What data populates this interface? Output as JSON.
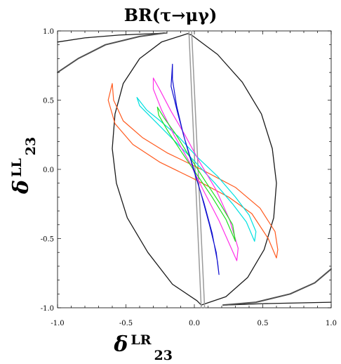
{
  "chart_data": {
    "type": "line",
    "title": "BR(τ→μγ)",
    "xlabel": {
      "symbol": "δ",
      "superscript": "LR",
      "subscript": "23"
    },
    "ylabel": {
      "symbol": "δ",
      "superscript": "LL",
      "subscript": "23"
    },
    "xlim": [
      -1.0,
      1.0
    ],
    "ylim": [
      -1.0,
      1.0
    ],
    "xticks": [
      "-1.0",
      "-0.5",
      "0.0",
      "0.5",
      "1.0"
    ],
    "yticks": [
      "1.0",
      "0.5",
      "0.0",
      "-0.5",
      "-1.0"
    ],
    "grid": false,
    "series": [
      {
        "color": "#1a1a1a",
        "width": 1.3,
        "closed": true,
        "points": [
          [
            -0.05,
            0.98
          ],
          [
            -0.24,
            0.92
          ],
          [
            -0.4,
            0.8
          ],
          [
            -0.52,
            0.62
          ],
          [
            -0.58,
            0.4
          ],
          [
            -0.6,
            0.15
          ],
          [
            -0.57,
            -0.1
          ],
          [
            -0.49,
            -0.35
          ],
          [
            -0.34,
            -0.6
          ],
          [
            -0.16,
            -0.83
          ],
          [
            0.02,
            -0.95
          ],
          [
            0.05,
            -0.98
          ],
          [
            0.23,
            -0.92
          ],
          [
            0.39,
            -0.78
          ],
          [
            0.51,
            -0.58
          ],
          [
            0.58,
            -0.35
          ],
          [
            0.6,
            -0.1
          ],
          [
            0.57,
            0.15
          ],
          [
            0.49,
            0.4
          ],
          [
            0.35,
            0.63
          ],
          [
            0.17,
            0.83
          ],
          [
            -0.02,
            0.97
          ],
          [
            -0.05,
            0.98
          ]
        ]
      },
      {
        "color": "#1a1a1a",
        "width": 1.3,
        "points": [
          [
            -1.0,
            0.92
          ],
          [
            -0.8,
            0.95
          ],
          [
            -0.55,
            0.97
          ],
          [
            -0.3,
            0.98
          ],
          [
            -0.2,
            0.985
          ]
        ]
      },
      {
        "color": "#1a1a1a",
        "width": 1.3,
        "points": [
          [
            0.23,
            -0.98
          ],
          [
            0.5,
            -0.97
          ],
          [
            0.75,
            -0.965
          ],
          [
            1.0,
            -0.96
          ]
        ]
      },
      {
        "color": "#505050",
        "width": 2.0,
        "points": [
          [
            -1.0,
            0.7
          ],
          [
            -0.85,
            0.8
          ],
          [
            -0.65,
            0.9
          ],
          [
            -0.4,
            0.96
          ],
          [
            -0.22,
            0.985
          ]
        ]
      },
      {
        "color": "#505050",
        "width": 2.0,
        "points": [
          [
            0.21,
            -0.98
          ],
          [
            0.45,
            -0.96
          ],
          [
            0.7,
            -0.9
          ],
          [
            0.88,
            -0.82
          ],
          [
            1.0,
            -0.72
          ]
        ]
      },
      {
        "color": "#9a9a9a",
        "width": 1.5,
        "points": [
          [
            -0.04,
            1.0
          ],
          [
            0.05,
            -1.0
          ]
        ]
      },
      {
        "color": "#9a9a9a",
        "width": 1.5,
        "points": [
          [
            -0.02,
            1.0
          ],
          [
            0.075,
            -1.0
          ]
        ]
      },
      {
        "color": "#ff5a1e",
        "width": 1.2,
        "closed": true,
        "points": [
          [
            -0.6,
            0.62
          ],
          [
            -0.63,
            0.5
          ],
          [
            -0.58,
            0.33
          ],
          [
            -0.45,
            0.18
          ],
          [
            -0.25,
            0.05
          ],
          [
            0.0,
            -0.07
          ],
          [
            0.25,
            -0.2
          ],
          [
            0.42,
            -0.32
          ],
          [
            0.54,
            -0.5
          ],
          [
            0.6,
            -0.64
          ],
          [
            0.61,
            -0.58
          ],
          [
            0.59,
            -0.45
          ],
          [
            0.48,
            -0.28
          ],
          [
            0.3,
            -0.13
          ],
          [
            0.05,
            0.0
          ],
          [
            -0.2,
            0.12
          ],
          [
            -0.38,
            0.23
          ],
          [
            -0.52,
            0.35
          ],
          [
            -0.59,
            0.5
          ],
          [
            -0.6,
            0.62
          ]
        ]
      },
      {
        "color": "#00e0e0",
        "width": 1.2,
        "closed": true,
        "points": [
          [
            -0.42,
            0.52
          ],
          [
            -0.4,
            0.46
          ],
          [
            -0.3,
            0.36
          ],
          [
            -0.15,
            0.21
          ],
          [
            0.0,
            0.06
          ],
          [
            0.15,
            -0.1
          ],
          [
            0.28,
            -0.25
          ],
          [
            0.38,
            -0.38
          ],
          [
            0.44,
            -0.52
          ],
          [
            0.45,
            -0.45
          ],
          [
            0.4,
            -0.33
          ],
          [
            0.3,
            -0.2
          ],
          [
            0.17,
            -0.05
          ],
          [
            0.02,
            0.09
          ],
          [
            -0.12,
            0.24
          ],
          [
            -0.25,
            0.35
          ],
          [
            -0.35,
            0.43
          ],
          [
            -0.42,
            0.52
          ]
        ]
      },
      {
        "color": "#ff30e8",
        "width": 1.2,
        "closed": true,
        "points": [
          [
            -0.3,
            0.66
          ],
          [
            -0.3,
            0.58
          ],
          [
            -0.24,
            0.43
          ],
          [
            -0.15,
            0.25
          ],
          [
            -0.04,
            0.06
          ],
          [
            0.06,
            -0.14
          ],
          [
            0.18,
            -0.37
          ],
          [
            0.27,
            -0.57
          ],
          [
            0.31,
            -0.66
          ],
          [
            0.32,
            -0.57
          ],
          [
            0.26,
            -0.37
          ],
          [
            0.16,
            -0.15
          ],
          [
            0.04,
            0.05
          ],
          [
            -0.07,
            0.25
          ],
          [
            -0.17,
            0.42
          ],
          [
            -0.25,
            0.57
          ],
          [
            -0.3,
            0.66
          ]
        ]
      },
      {
        "color": "#20e020",
        "width": 1.2,
        "closed": true,
        "points": [
          [
            -0.27,
            0.45
          ],
          [
            -0.26,
            0.39
          ],
          [
            -0.19,
            0.27
          ],
          [
            -0.09,
            0.12
          ],
          [
            0.02,
            -0.04
          ],
          [
            0.13,
            -0.2
          ],
          [
            0.23,
            -0.36
          ],
          [
            0.3,
            -0.52
          ],
          [
            0.28,
            -0.4
          ],
          [
            0.19,
            -0.25
          ],
          [
            0.07,
            -0.07
          ],
          [
            -0.04,
            0.1
          ],
          [
            -0.14,
            0.26
          ],
          [
            -0.22,
            0.37
          ],
          [
            -0.27,
            0.45
          ]
        ]
      },
      {
        "color": "#1010d0",
        "width": 1.2,
        "closed": true,
        "points": [
          [
            -0.16,
            0.76
          ],
          [
            -0.17,
            0.6
          ],
          [
            -0.12,
            0.4
          ],
          [
            -0.06,
            0.18
          ],
          [
            0.0,
            -0.02
          ],
          [
            0.07,
            -0.24
          ],
          [
            0.13,
            -0.46
          ],
          [
            0.17,
            -0.67
          ],
          [
            0.18,
            -0.76
          ],
          [
            0.16,
            -0.6
          ],
          [
            0.11,
            -0.4
          ],
          [
            0.05,
            -0.18
          ],
          [
            -0.01,
            0.02
          ],
          [
            -0.08,
            0.25
          ],
          [
            -0.13,
            0.46
          ],
          [
            -0.16,
            0.65
          ],
          [
            -0.16,
            0.76
          ]
        ]
      }
    ]
  }
}
